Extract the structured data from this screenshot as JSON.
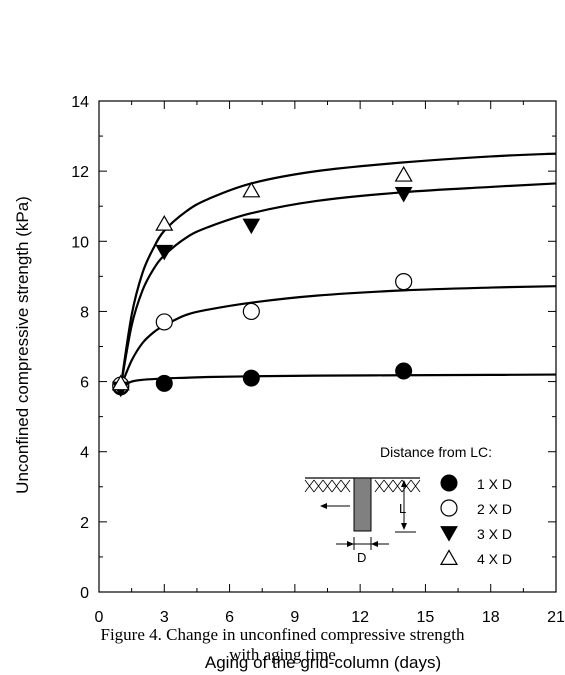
{
  "chart_data": {
    "type": "scatter",
    "ylabel": "Unconfined compressive strength (kPa)",
    "xlabel": "Aging of the grid-column (days)",
    "xlim": [
      0,
      21
    ],
    "ylim": [
      0,
      14
    ],
    "x_ticks": [
      0,
      3,
      6,
      9,
      12,
      15,
      18,
      21
    ],
    "y_ticks": [
      0,
      2,
      4,
      6,
      8,
      10,
      12,
      14
    ],
    "legend": {
      "title": "Distance from LC:",
      "placement": "bottom-right"
    },
    "series": [
      {
        "name": "1 X D",
        "marker": "filled-circle",
        "points": [
          {
            "x": 1,
            "y": 5.85
          },
          {
            "x": 3,
            "y": 5.95
          },
          {
            "x": 7,
            "y": 6.1
          },
          {
            "x": 14,
            "y": 6.3
          }
        ],
        "fit": [
          [
            1,
            5.85
          ],
          [
            1.5,
            6.0
          ],
          [
            2,
            6.05
          ],
          [
            3,
            6.09
          ],
          [
            4,
            6.11
          ],
          [
            5,
            6.13
          ],
          [
            7,
            6.15
          ],
          [
            10,
            6.17
          ],
          [
            14,
            6.18
          ],
          [
            18,
            6.19
          ],
          [
            21,
            6.2
          ]
        ]
      },
      {
        "name": "2 X D",
        "marker": "open-circle",
        "points": [
          {
            "x": 1,
            "y": 5.9
          },
          {
            "x": 3,
            "y": 7.7
          },
          {
            "x": 7,
            "y": 8.0
          },
          {
            "x": 14,
            "y": 8.85
          }
        ],
        "fit": [
          [
            1,
            5.85
          ],
          [
            1.5,
            6.6
          ],
          [
            2,
            7.1
          ],
          [
            2.5,
            7.4
          ],
          [
            3,
            7.6
          ],
          [
            4,
            7.9
          ],
          [
            5,
            8.05
          ],
          [
            7,
            8.25
          ],
          [
            10,
            8.45
          ],
          [
            14,
            8.6
          ],
          [
            18,
            8.68
          ],
          [
            21,
            8.72
          ]
        ]
      },
      {
        "name": "3 X D",
        "marker": "filled-triangle-down",
        "points": [
          {
            "x": 1,
            "y": 5.8
          },
          {
            "x": 3,
            "y": 9.7
          },
          {
            "x": 7,
            "y": 10.45
          },
          {
            "x": 14,
            "y": 11.35
          }
        ],
        "fit": [
          [
            1,
            5.85
          ],
          [
            1.5,
            7.6
          ],
          [
            2,
            8.6
          ],
          [
            2.5,
            9.2
          ],
          [
            3,
            9.6
          ],
          [
            4,
            10.1
          ],
          [
            5,
            10.4
          ],
          [
            7,
            10.8
          ],
          [
            10,
            11.15
          ],
          [
            14,
            11.4
          ],
          [
            18,
            11.55
          ],
          [
            21,
            11.65
          ]
        ]
      },
      {
        "name": "4 X D",
        "marker": "open-triangle-up",
        "points": [
          {
            "x": 1,
            "y": 5.95
          },
          {
            "x": 3,
            "y": 10.5
          },
          {
            "x": 7,
            "y": 11.45
          },
          {
            "x": 14,
            "y": 11.9
          }
        ],
        "fit": [
          [
            1,
            5.85
          ],
          [
            1.5,
            7.9
          ],
          [
            2,
            9.1
          ],
          [
            2.5,
            9.8
          ],
          [
            3,
            10.3
          ],
          [
            4,
            10.85
          ],
          [
            5,
            11.2
          ],
          [
            7,
            11.65
          ],
          [
            10,
            12.0
          ],
          [
            14,
            12.25
          ],
          [
            18,
            12.42
          ],
          [
            21,
            12.5
          ]
        ]
      }
    ]
  },
  "diagram": {
    "labels": [
      "L",
      "D"
    ]
  },
  "caption": {
    "line1": "Figure 4. Change in unconfined compressive strength",
    "line2": "with aging time"
  }
}
